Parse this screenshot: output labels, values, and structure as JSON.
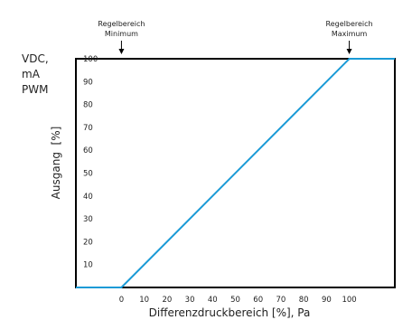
{
  "chart_data": {
    "type": "line",
    "title": "",
    "xlabel": "Differenzdruckbereich [%], Pa",
    "ylabel": "Ausgang  [%]",
    "y_signal_labels": [
      "VDC,",
      "mA",
      "PWM"
    ],
    "x_ticks": [
      0,
      10,
      20,
      30,
      40,
      50,
      60,
      70,
      80,
      90,
      100
    ],
    "y_ticks": [
      10,
      20,
      30,
      40,
      50,
      60,
      70,
      80,
      90,
      100
    ],
    "xlim": [
      -20,
      120
    ],
    "ylim": [
      0,
      100
    ],
    "grid": false,
    "series": [
      {
        "x": [
          -20,
          0,
          100,
          120
        ],
        "y": [
          0,
          0,
          100,
          100
        ]
      }
    ],
    "annotations": [
      {
        "line1": "Regelbereich",
        "line2": "Minimum",
        "x": 0
      },
      {
        "line1": "Regelbereich",
        "line2": "Maximum",
        "x": 100
      }
    ],
    "line_color": "#1a9ad6",
    "axis_color": "#000000"
  }
}
